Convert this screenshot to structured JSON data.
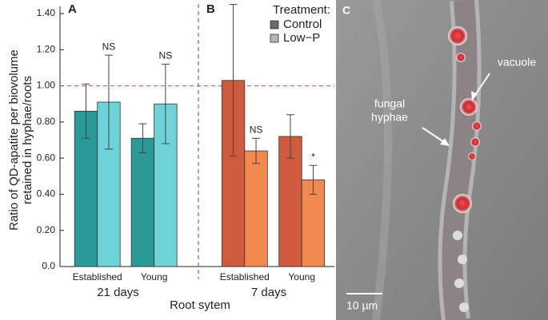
{
  "chart_data": {
    "type": "bar",
    "ylabel": [
      "Ratio of QD-apatite per biovolume",
      "retained in hyphae/roots"
    ],
    "xlabel": "Root sytem",
    "ylim": [
      0,
      1.4
    ],
    "yticks": [
      {
        "value": 0,
        "label": "0.0"
      },
      {
        "value": 0.2,
        "label": "0.20"
      },
      {
        "value": 0.4,
        "label": "0.40"
      },
      {
        "value": 0.6,
        "label": "0.60"
      },
      {
        "value": 0.8,
        "label": "0.80"
      },
      {
        "value": 1.0,
        "label": "1.00"
      },
      {
        "value": 1.2,
        "label": "1.20"
      },
      {
        "value": 1.4,
        "label": "1.40"
      }
    ],
    "reference_line": 1.0,
    "legend": {
      "title": "Treatment:",
      "entries": [
        {
          "name": "Control",
          "color": "#6b6b6b"
        },
        {
          "name": "Low−P",
          "color": "#b5b5b5"
        }
      ]
    },
    "panels": [
      {
        "label": "A",
        "group": "21 days",
        "categories": [
          "Established",
          "Young"
        ],
        "series": [
          {
            "color": "#2a9a98",
            "values": [
              0.86,
              0.71
            ],
            "errors": [
              0.15,
              0.08
            ],
            "value_labels": [
              null,
              null
            ]
          },
          {
            "color": "#6dd3d6",
            "values": [
              0.91,
              0.9
            ],
            "errors": [
              0.26,
              0.22
            ],
            "value_labels": [
              "NS",
              "NS"
            ]
          }
        ]
      },
      {
        "label": "B",
        "group": "7 days",
        "categories": [
          "Established",
          "Young"
        ],
        "series": [
          {
            "color": "#d05a3c",
            "values": [
              1.03,
              0.72
            ],
            "errors": [
              0.42,
              0.12
            ],
            "value_labels": [
              null,
              null
            ]
          },
          {
            "color": "#f28a4f",
            "values": [
              0.64,
              0.48
            ],
            "errors": [
              0.07,
              0.08
            ],
            "value_labels": [
              "NS",
              "*"
            ]
          }
        ]
      }
    ]
  },
  "image": {
    "label": "C",
    "vacuole": "vacuole",
    "hyphae": [
      "fungal",
      "hyphae"
    ],
    "scale": "10 µm"
  }
}
